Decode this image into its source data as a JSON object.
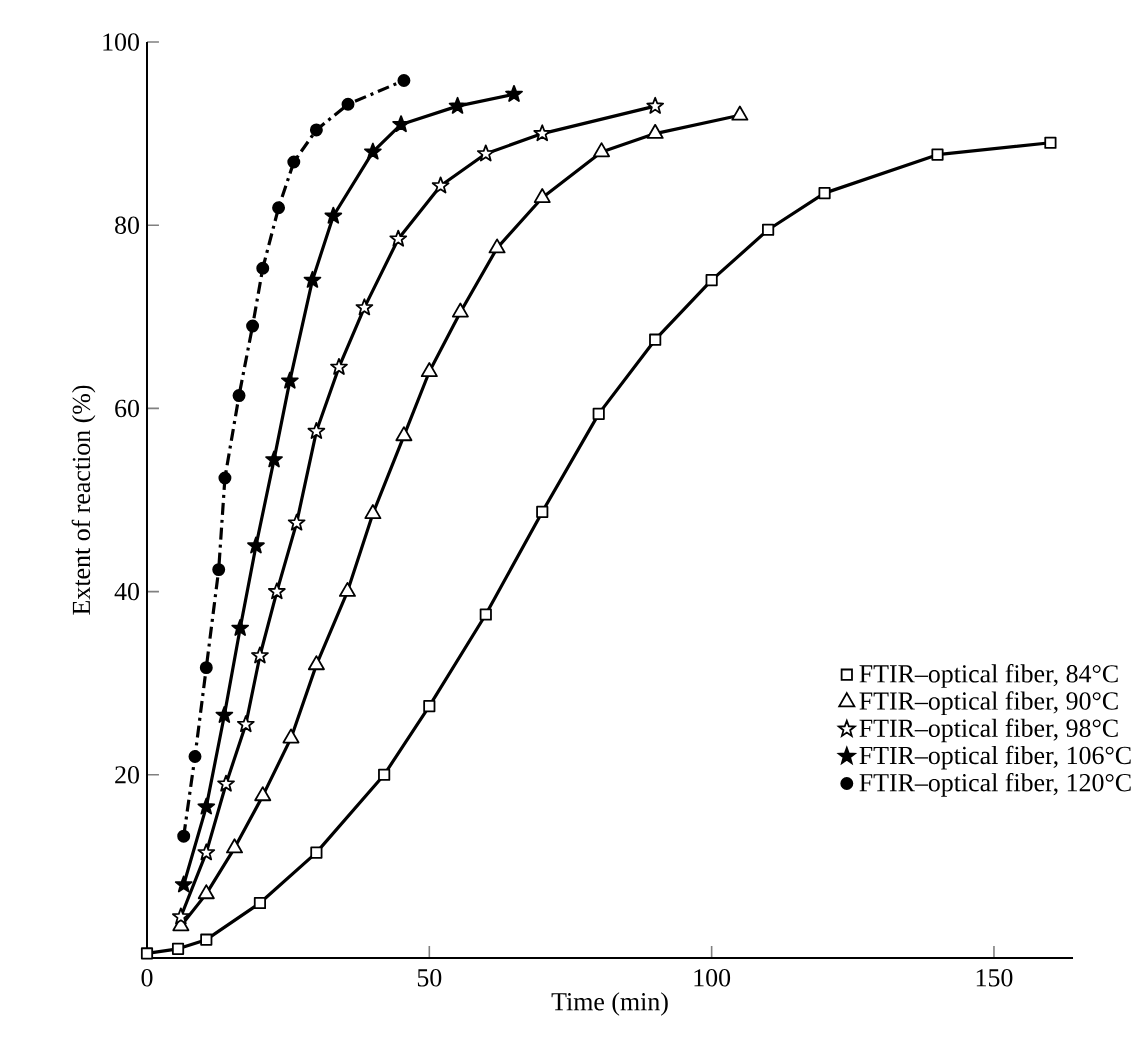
{
  "chart_data": {
    "type": "line",
    "xlabel": "Time (min)",
    "ylabel": "Extent of reaction (%)",
    "xlim": [
      0,
      164
    ],
    "ylim": [
      0,
      100
    ],
    "xticks": [
      0,
      50,
      100,
      150
    ],
    "yticks": [
      {
        "value": 0,
        "label": null
      },
      20,
      40,
      60,
      80,
      100
    ],
    "grid": false,
    "legend": "bottom right",
    "series": [
      {
        "name": "FTIR–optical fiber, 84°C",
        "color": "#000000",
        "marker": "square",
        "line_style": "solid",
        "x": [
          0,
          5.5,
          10.5,
          20,
          30,
          42,
          50,
          60,
          70,
          80,
          90,
          100,
          110,
          120,
          140,
          160
        ],
        "values": [
          0.5,
          1,
          2,
          6,
          11.5,
          20,
          27.5,
          37.5,
          48.7,
          59.4,
          67.5,
          74,
          79.5,
          83.5,
          87.7,
          89
        ]
      },
      {
        "name": "FTIR–optical fiber, 90°C",
        "color": "#000000",
        "marker": "triangle",
        "line_style": "solid",
        "x": [
          6,
          10.5,
          15.5,
          20.5,
          25.5,
          30,
          35.5,
          40,
          45.5,
          50,
          55.5,
          62,
          70,
          80.5,
          90,
          105
        ],
        "values": [
          3.5,
          7,
          12,
          17.7,
          24,
          32,
          40,
          48.5,
          57,
          64,
          70.5,
          77.5,
          83,
          88,
          90,
          92
        ]
      },
      {
        "name": "FTIR–optical fiber, 98°C",
        "color": "#000000",
        "marker": "star",
        "line_style": "solid",
        "x": [
          6,
          10.5,
          14,
          17.5,
          20,
          23,
          26.5,
          30,
          34,
          38.5,
          44.5,
          52,
          60,
          70,
          90
        ],
        "values": [
          4.5,
          11.5,
          19,
          25.5,
          33,
          40,
          47.5,
          57.5,
          64.5,
          71,
          78.5,
          84.3,
          87.8,
          90,
          93
        ]
      },
      {
        "name": "FTIR–optical fiber, 106°C",
        "color": "#000000",
        "marker": "star",
        "line_style": "solid",
        "x": [
          6.5,
          10.5,
          13.7,
          16.5,
          19.3,
          22.5,
          25.3,
          29.3,
          33,
          40,
          45,
          55,
          65
        ],
        "values": [
          8,
          16.5,
          26.5,
          36,
          45,
          54.4,
          63,
          74,
          81,
          88,
          91,
          93,
          94.3
        ]
      },
      {
        "name": "FTIR–optical fiber, 120°C",
        "color": "#000000",
        "marker": "circle",
        "line_style": "dashdot",
        "x": [
          6.5,
          8.5,
          10.5,
          12.7,
          13.8,
          16.3,
          18.7,
          20.5,
          23.3,
          26,
          30,
          35.6,
          45.5
        ],
        "values": [
          13.3,
          22,
          31.7,
          42.4,
          52.4,
          61.4,
          69,
          75.3,
          81.9,
          86.9,
          90.4,
          93.2,
          95.8
        ]
      }
    ]
  }
}
